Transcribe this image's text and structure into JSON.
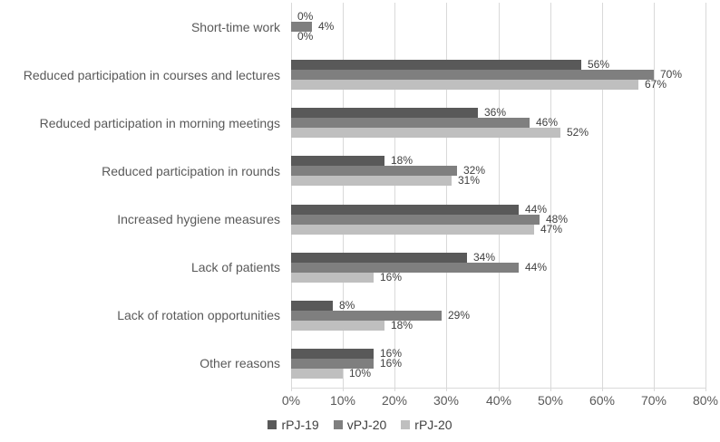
{
  "chart_data": {
    "type": "bar",
    "orientation": "horizontal",
    "title": "",
    "xlabel": "",
    "ylabel": "",
    "xlim": [
      0,
      80
    ],
    "x_tick_step": 10,
    "x_ticks": [
      "0%",
      "10%",
      "20%",
      "30%",
      "40%",
      "50%",
      "60%",
      "70%",
      "80%"
    ],
    "grid": "vertical",
    "legend_position": "bottom",
    "value_label_suffix": "%",
    "categories": [
      "Short-time work",
      "Reduced participation in courses and lectures",
      "Reduced participation in morning meetings",
      "Reduced participation in rounds",
      "Increased hygiene measures",
      "Lack of patients",
      "Lack of rotation opportunities",
      "Other reasons"
    ],
    "series": [
      {
        "name": "rPJ-19",
        "color": "#595959",
        "values": [
          0,
          56,
          36,
          18,
          44,
          34,
          8,
          16
        ]
      },
      {
        "name": "vPJ-20",
        "color": "#7f7f7f",
        "values": [
          4,
          70,
          46,
          32,
          48,
          44,
          29,
          16
        ]
      },
      {
        "name": "rPJ-20",
        "color": "#bfbfbf",
        "values": [
          0,
          67,
          52,
          31,
          47,
          16,
          18,
          10
        ]
      }
    ]
  },
  "colors": {
    "background": "#ffffff",
    "gridline": "#d9d9d9",
    "axis_text": "#595959",
    "value_text": "#404040",
    "legend_text": "#404040"
  }
}
